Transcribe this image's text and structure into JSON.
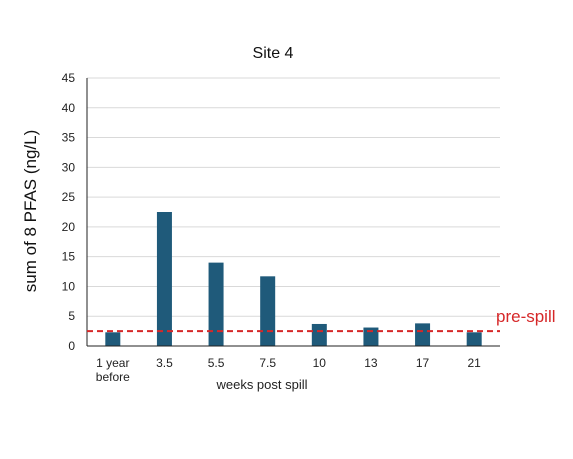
{
  "chart_data": {
    "type": "bar",
    "title": "Site 4",
    "xlabel": "weeks post spill",
    "ylabel": "sum of 8 PFAS (ng/L)",
    "categories": [
      [
        "1 year",
        "before"
      ],
      [
        "3.5"
      ],
      [
        "5.5"
      ],
      [
        "7.5"
      ],
      [
        "10"
      ],
      [
        "13"
      ],
      [
        "17"
      ],
      [
        "21"
      ]
    ],
    "values": [
      2.3,
      22.5,
      14.0,
      11.7,
      3.7,
      3.1,
      3.8,
      2.3
    ],
    "ylim": [
      0,
      45
    ],
    "yticks": [
      0,
      5,
      10,
      15,
      20,
      25,
      30,
      35,
      40,
      45
    ],
    "grid": "horizontal",
    "legend": "none",
    "reference_line": {
      "label": "pre-spill",
      "value": 2.5,
      "style": "dashed"
    },
    "colors": {
      "bar": "#1f5a7a",
      "reference": "#d62728",
      "grid": "#d9d9d9",
      "axis": "#222222"
    }
  }
}
